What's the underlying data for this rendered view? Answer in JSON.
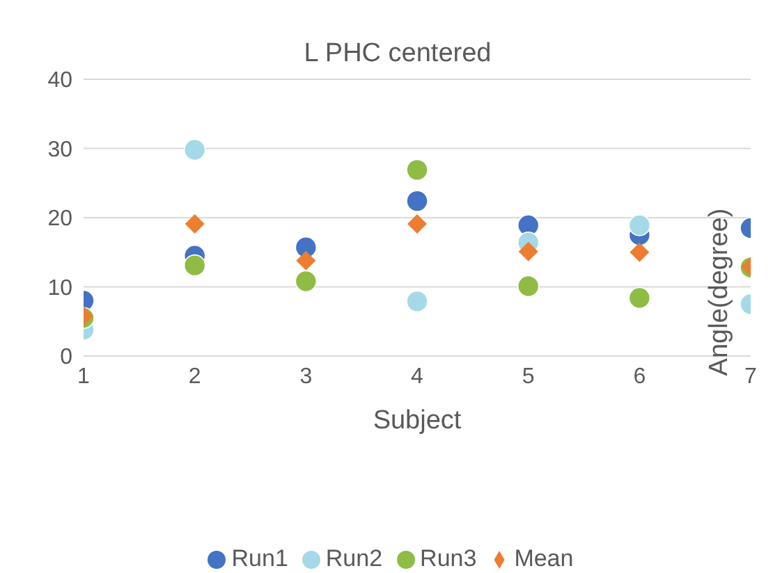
{
  "chart_data": {
    "type": "scatter",
    "title": "L PHC centered",
    "xlabel": "Subject",
    "ylabel": "Angle(degree)",
    "x": [
      1,
      2,
      3,
      4,
      5,
      6,
      7
    ],
    "series": [
      {
        "name": "Run1",
        "color": "#4472c4",
        "marker": "circle",
        "values": [
          8,
          14.5,
          15.7,
          22.4,
          18.9,
          17.5,
          18.5
        ]
      },
      {
        "name": "Run2",
        "color": "#a5d9e8",
        "marker": "circle",
        "values": [
          3.8,
          29.8,
          null,
          7.9,
          16.4,
          18.9,
          7.5
        ]
      },
      {
        "name": "Run3",
        "color": "#8fbc45",
        "marker": "circle",
        "values": [
          5.5,
          13.1,
          10.8,
          26.9,
          10.1,
          8.4,
          12.8
        ]
      },
      {
        "name": "Mean",
        "color": "#ed7d31",
        "marker": "diamond",
        "values": [
          5.8,
          19.1,
          13.8,
          19.1,
          15.1,
          15,
          12.9
        ]
      }
    ],
    "xlim": [
      1,
      7
    ],
    "xticks": [
      1,
      2,
      3,
      4,
      5,
      6,
      7
    ],
    "ylim": [
      0,
      40
    ],
    "yticks": [
      0,
      10,
      20,
      30,
      40
    ],
    "grid": "y",
    "legend": "bottom"
  }
}
